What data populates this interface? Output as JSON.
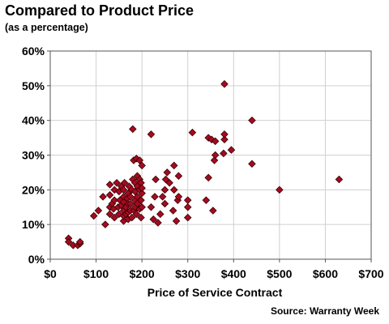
{
  "header": {
    "title": "Compared to Product Price",
    "subtitle": "(as a percentage)"
  },
  "footer": {
    "source": "Source: Warranty Week"
  },
  "colors": {
    "marker_fill": "#a50b1e",
    "marker_stroke": "#3a0008",
    "plot_border": "#555555",
    "grid": "#d0d0d0"
  },
  "chart_data": {
    "type": "scatter",
    "title": "Compared to Product Price",
    "subtitle": "(as a percentage)",
    "xlabel": "Price of Service Contract",
    "ylabel": "",
    "xlim": [
      0,
      700
    ],
    "ylim": [
      0,
      60
    ],
    "x_ticks": [
      "$0",
      "$100",
      "$200",
      "$300",
      "$400",
      "$500",
      "$600",
      "$700"
    ],
    "y_ticks": [
      "0%",
      "10%",
      "20%",
      "30%",
      "40%",
      "50%",
      "60%"
    ],
    "grid": true,
    "marker": "diamond",
    "points": [
      [
        40,
        6
      ],
      [
        40,
        5
      ],
      [
        50,
        4
      ],
      [
        60,
        4
      ],
      [
        65,
        4.5
      ],
      [
        65,
        5
      ],
      [
        95,
        12.5
      ],
      [
        105,
        14
      ],
      [
        115,
        18
      ],
      [
        120,
        10
      ],
      [
        130,
        13
      ],
      [
        130,
        15
      ],
      [
        130,
        18.5
      ],
      [
        130,
        21.5
      ],
      [
        135,
        16
      ],
      [
        138,
        14.5
      ],
      [
        140,
        12
      ],
      [
        140,
        17
      ],
      [
        140,
        20
      ],
      [
        145,
        22
      ],
      [
        148,
        15
      ],
      [
        150,
        13
      ],
      [
        150,
        19.5
      ],
      [
        152,
        17
      ],
      [
        155,
        15.5
      ],
      [
        155,
        21
      ],
      [
        160,
        11
      ],
      [
        160,
        12.5
      ],
      [
        160,
        14
      ],
      [
        160,
        16.5
      ],
      [
        160,
        18
      ],
      [
        160,
        20
      ],
      [
        162,
        22
      ],
      [
        165,
        13
      ],
      [
        165,
        15
      ],
      [
        168,
        17.5
      ],
      [
        170,
        11.5
      ],
      [
        170,
        13.5
      ],
      [
        170,
        16
      ],
      [
        170,
        19
      ],
      [
        172,
        21
      ],
      [
        175,
        14
      ],
      [
        175,
        16
      ],
      [
        175,
        18
      ],
      [
        178,
        12
      ],
      [
        178,
        20
      ],
      [
        180,
        23
      ],
      [
        180,
        37.5
      ],
      [
        182,
        28.5
      ],
      [
        183,
        14
      ],
      [
        185,
        15
      ],
      [
        185,
        17
      ],
      [
        185,
        19.5
      ],
      [
        185,
        22
      ],
      [
        188,
        13
      ],
      [
        188,
        29
      ],
      [
        190,
        16
      ],
      [
        190,
        18
      ],
      [
        190,
        21
      ],
      [
        190,
        24
      ],
      [
        195,
        14.5
      ],
      [
        195,
        20
      ],
      [
        195,
        23
      ],
      [
        195,
        28.5
      ],
      [
        198,
        12
      ],
      [
        198,
        17
      ],
      [
        198,
        22
      ],
      [
        200,
        15
      ],
      [
        200,
        19
      ],
      [
        200,
        20.5
      ],
      [
        200,
        27
      ],
      [
        220,
        15
      ],
      [
        220,
        36
      ],
      [
        225,
        11.5
      ],
      [
        228,
        18
      ],
      [
        230,
        23
      ],
      [
        235,
        10.5
      ],
      [
        240,
        13
      ],
      [
        245,
        18
      ],
      [
        250,
        16
      ],
      [
        250,
        20
      ],
      [
        252,
        23
      ],
      [
        255,
        25
      ],
      [
        260,
        22
      ],
      [
        268,
        14
      ],
      [
        270,
        20
      ],
      [
        270,
        27
      ],
      [
        275,
        11
      ],
      [
        278,
        17
      ],
      [
        280,
        18
      ],
      [
        280,
        24
      ],
      [
        300,
        12
      ],
      [
        300,
        15
      ],
      [
        300,
        17
      ],
      [
        310,
        36.5
      ],
      [
        340,
        17
      ],
      [
        345,
        23.5
      ],
      [
        345,
        35
      ],
      [
        352,
        34.5
      ],
      [
        355,
        14
      ],
      [
        358,
        28.5
      ],
      [
        360,
        30
      ],
      [
        360,
        34
      ],
      [
        378,
        30.5
      ],
      [
        380,
        34.5
      ],
      [
        380,
        50.5
      ],
      [
        380,
        36
      ],
      [
        395,
        31.5
      ],
      [
        440,
        40
      ],
      [
        440,
        27.5
      ],
      [
        500,
        20
      ],
      [
        630,
        23
      ]
    ]
  }
}
